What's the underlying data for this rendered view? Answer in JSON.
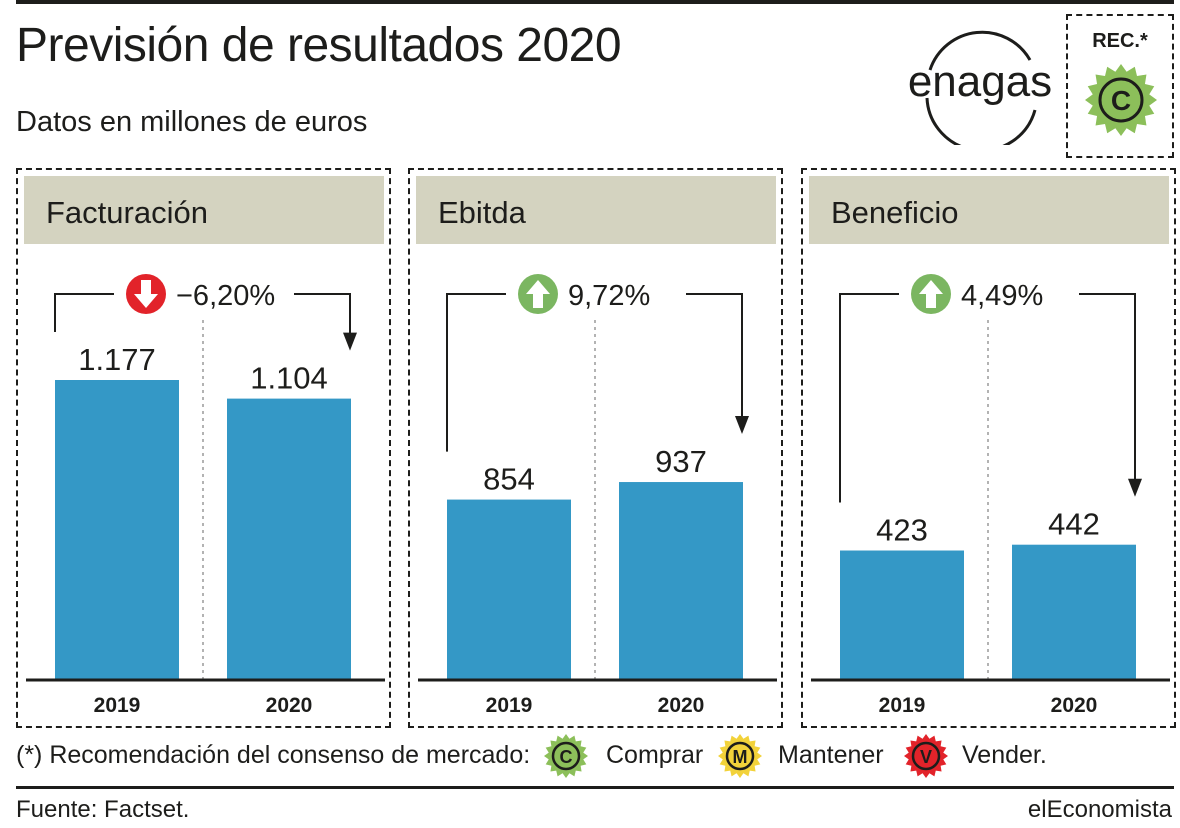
{
  "header": {
    "title": "Previsión de resultados 2020",
    "subtitle": "Datos en millones de euros"
  },
  "logo": {
    "text": "enagas"
  },
  "recommendation": {
    "label": "REC.*",
    "badge_letter": "C",
    "badge_color": "#8cbf5a"
  },
  "chart_data": [
    {
      "type": "bar",
      "title": "Facturación",
      "categories": [
        "2019",
        "2020"
      ],
      "values": [
        1177,
        1104
      ],
      "value_labels": [
        "1.177",
        "1.104"
      ],
      "change_label": "−6,20%",
      "change_direction": "down",
      "ylim": [
        0,
        1177
      ]
    },
    {
      "type": "bar",
      "title": "Ebitda",
      "categories": [
        "2019",
        "2020"
      ],
      "values": [
        854,
        937
      ],
      "value_labels": [
        "854",
        "937"
      ],
      "change_label": "9,72%",
      "change_direction": "up",
      "ylim": [
        0,
        1420
      ]
    },
    {
      "type": "bar",
      "title": "Beneficio",
      "categories": [
        "2019",
        "2020"
      ],
      "values": [
        423,
        442
      ],
      "value_labels": [
        "423",
        "442"
      ],
      "change_label": "4,49%",
      "change_direction": "up",
      "ylim": [
        0,
        980
      ]
    }
  ],
  "colors": {
    "bar": "#3498c6",
    "header_bg": "#d4d3c0",
    "up": "#7bb661",
    "down": "#e2232a",
    "mantener": "#f2d23a",
    "vender": "#e2232a"
  },
  "legend": {
    "intro": "(*) Recomendación del consenso de mercado:",
    "items": [
      {
        "letter": "C",
        "label": "Comprar",
        "color": "#8cbf5a"
      },
      {
        "letter": "M",
        "label": "Mantener",
        "color": "#f2d23a"
      },
      {
        "letter": "V",
        "label": "Vender.",
        "color": "#e2232a"
      }
    ]
  },
  "footer": {
    "source": "Fuente: Factset.",
    "brand": "elEconomista"
  }
}
